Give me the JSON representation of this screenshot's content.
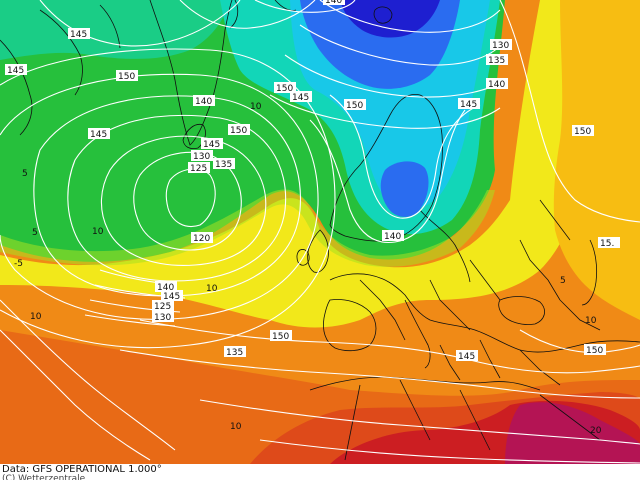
{
  "map": {
    "source_text": "Data: GFS OPERATIONAL 1.000°",
    "copyright_text": "(C) Wetterzentrale",
    "contour_labels": [
      "145",
      "150",
      "140",
      "135",
      "130",
      "125",
      "120",
      "145",
      "140",
      "130",
      "135",
      "140",
      "145",
      "150",
      "145",
      "150",
      "145",
      "150",
      "140",
      "145",
      "125",
      "130",
      "135",
      "140",
      "145",
      "150",
      "150",
      "145",
      "15.",
      "150",
      "5",
      "10",
      "5",
      "10",
      "-5",
      "10",
      "10",
      "5",
      "10",
      "10",
      "20"
    ],
    "colors": {
      "very_cold": "#1e1fd0",
      "cold_blue": "#2a6cf0",
      "cyan": "#18c8e8",
      "teal": "#12d6b8",
      "green": "#26c03c",
      "yellow_green": "#a8e020",
      "yellow": "#f2e81a",
      "orange_yellow": "#f7bd12",
      "orange": "#f08a16",
      "deep_orange": "#e86a16",
      "red_orange": "#de4a1a",
      "red": "#cc1e22",
      "magenta": "#b41454",
      "contour_white": "#ffffff",
      "coastline": "#101010"
    }
  }
}
